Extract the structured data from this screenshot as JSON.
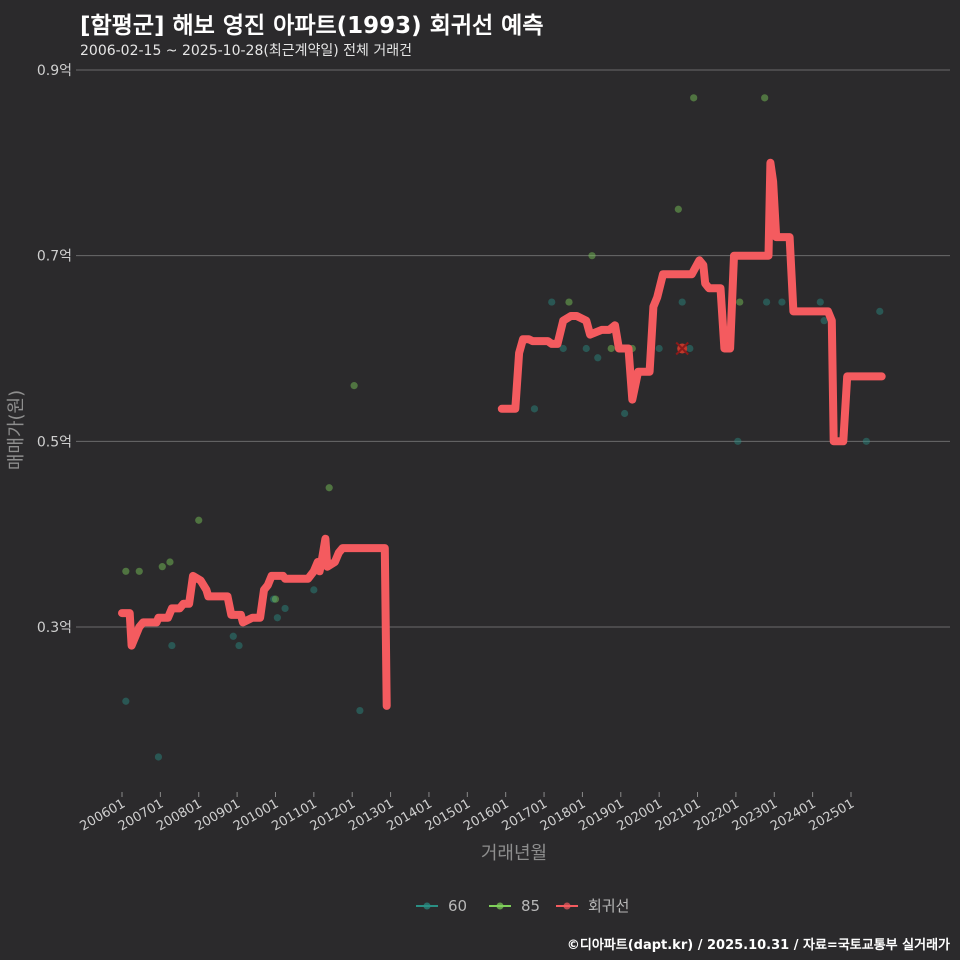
{
  "title": "[함평군] 해보 영진 아파트(1993) 회귀선 예측",
  "subtitle": "2006-02-15 ~ 2025-10-28(최근계약일) 전체 거래건",
  "credit": "©디아파트(dapt.kr) / 2025.10.31 / 자료=국토교통부 실거래가",
  "colors": {
    "background": "#2b2a2c",
    "grid": "#6b6b6b",
    "s60": "#2a8f84",
    "s85": "#7fcf5a",
    "regression": "#f45b5f"
  },
  "chart_data": {
    "type": "scatter",
    "title": "[함평군] 해보 영진 아파트(1993) 회귀선 예측",
    "xlabel": "거래년월",
    "ylabel": "매매가(원)",
    "x_range": [
      2005.9,
      2026.3
    ],
    "ylim": [
      0.13,
      0.93
    ],
    "y_ticks": [
      {
        "v": 0.3,
        "label": "0.3억"
      },
      {
        "v": 0.5,
        "label": "0.5억"
      },
      {
        "v": 0.7,
        "label": "0.7억"
      },
      {
        "v": 0.9,
        "label": "0.9억"
      }
    ],
    "x_ticks": [
      {
        "v": 2006,
        "label": "200601"
      },
      {
        "v": 2007,
        "label": "200701"
      },
      {
        "v": 2008,
        "label": "200801"
      },
      {
        "v": 2009,
        "label": "200901"
      },
      {
        "v": 2010,
        "label": "201001"
      },
      {
        "v": 2011,
        "label": "201101"
      },
      {
        "v": 2012,
        "label": "201201"
      },
      {
        "v": 2013,
        "label": "201301"
      },
      {
        "v": 2014,
        "label": "201401"
      },
      {
        "v": 2015,
        "label": "201501"
      },
      {
        "v": 2016,
        "label": "201601"
      },
      {
        "v": 2017,
        "label": "201701"
      },
      {
        "v": 2018,
        "label": "201801"
      },
      {
        "v": 2019,
        "label": "201901"
      },
      {
        "v": 2020,
        "label": "202001"
      },
      {
        "v": 2021,
        "label": "202101"
      },
      {
        "v": 2022,
        "label": "202201"
      },
      {
        "v": 2023,
        "label": "202301"
      },
      {
        "v": 2024,
        "label": "202401"
      },
      {
        "v": 2025,
        "label": "202501"
      }
    ],
    "legend": [
      {
        "name": "60",
        "color": "#2a8f84"
      },
      {
        "name": "85",
        "color": "#7fcf5a"
      },
      {
        "name": "회귀선",
        "color": "#f45b5f"
      }
    ],
    "series": [
      {
        "name": "60",
        "points": [
          [
            2006.1,
            0.22
          ],
          [
            2006.95,
            0.16
          ],
          [
            2007.3,
            0.28
          ],
          [
            2008.2,
            0.34
          ],
          [
            2008.9,
            0.29
          ],
          [
            2009.05,
            0.28
          ],
          [
            2009.95,
            0.33
          ],
          [
            2010.05,
            0.31
          ],
          [
            2010.25,
            0.32
          ],
          [
            2011.0,
            0.34
          ],
          [
            2012.2,
            0.21
          ],
          [
            2016.75,
            0.535
          ],
          [
            2017.2,
            0.65
          ],
          [
            2017.5,
            0.6
          ],
          [
            2018.1,
            0.6
          ],
          [
            2018.4,
            0.59
          ],
          [
            2019.1,
            0.53
          ],
          [
            2020.0,
            0.6
          ],
          [
            2020.6,
            0.65
          ],
          [
            2020.8,
            0.6
          ],
          [
            2022.05,
            0.5
          ],
          [
            2022.8,
            0.65
          ],
          [
            2023.2,
            0.65
          ],
          [
            2024.2,
            0.65
          ],
          [
            2024.3,
            0.63
          ],
          [
            2025.4,
            0.5
          ],
          [
            2025.75,
            0.64
          ]
        ]
      },
      {
        "name": "85",
        "points": [
          [
            2006.1,
            0.36
          ],
          [
            2006.45,
            0.36
          ],
          [
            2007.05,
            0.365
          ],
          [
            2007.25,
            0.37
          ],
          [
            2008.0,
            0.415
          ],
          [
            2010.0,
            0.33
          ],
          [
            2011.4,
            0.45
          ],
          [
            2012.05,
            0.56
          ],
          [
            2017.65,
            0.65
          ],
          [
            2018.25,
            0.7
          ],
          [
            2018.75,
            0.6
          ],
          [
            2019.3,
            0.6
          ],
          [
            2020.5,
            0.75
          ],
          [
            2020.9,
            0.87
          ],
          [
            2022.1,
            0.65
          ],
          [
            2022.75,
            0.87
          ]
        ]
      }
    ],
    "marker": {
      "x": 2020.6,
      "y": 0.6
    },
    "regression": [
      [
        [
          2006.0,
          0.315
        ],
        [
          2006.2,
          0.315
        ],
        [
          2006.25,
          0.28
        ],
        [
          2006.45,
          0.3
        ],
        [
          2006.55,
          0.305
        ],
        [
          2006.9,
          0.305
        ],
        [
          2006.95,
          0.31
        ],
        [
          2007.2,
          0.31
        ],
        [
          2007.3,
          0.32
        ],
        [
          2007.5,
          0.32
        ],
        [
          2007.6,
          0.325
        ],
        [
          2007.75,
          0.325
        ],
        [
          2007.85,
          0.355
        ],
        [
          2008.05,
          0.35
        ],
        [
          2008.2,
          0.34
        ],
        [
          2008.25,
          0.333
        ],
        [
          2008.75,
          0.333
        ],
        [
          2008.85,
          0.313
        ],
        [
          2009.1,
          0.313
        ],
        [
          2009.15,
          0.305
        ],
        [
          2009.4,
          0.31
        ],
        [
          2009.6,
          0.31
        ],
        [
          2009.7,
          0.34
        ],
        [
          2009.8,
          0.345
        ],
        [
          2009.9,
          0.355
        ],
        [
          2010.2,
          0.355
        ],
        [
          2010.25,
          0.352
        ],
        [
          2010.85,
          0.352
        ],
        [
          2011.0,
          0.36
        ],
        [
          2011.1,
          0.37
        ],
        [
          2011.15,
          0.36
        ],
        [
          2011.2,
          0.37
        ],
        [
          2011.3,
          0.395
        ],
        [
          2011.35,
          0.365
        ],
        [
          2011.55,
          0.37
        ],
        [
          2011.65,
          0.38
        ],
        [
          2011.75,
          0.385
        ],
        [
          2012.85,
          0.385
        ],
        [
          2012.9,
          0.215
        ]
      ],
      [
        [
          2015.9,
          0.535
        ],
        [
          2016.25,
          0.535
        ],
        [
          2016.35,
          0.595
        ],
        [
          2016.45,
          0.61
        ],
        [
          2016.6,
          0.61
        ],
        [
          2016.7,
          0.608
        ],
        [
          2017.1,
          0.608
        ],
        [
          2017.2,
          0.605
        ],
        [
          2017.35,
          0.605
        ],
        [
          2017.5,
          0.63
        ],
        [
          2017.7,
          0.635
        ],
        [
          2017.85,
          0.635
        ],
        [
          2018.1,
          0.63
        ],
        [
          2018.2,
          0.615
        ],
        [
          2018.5,
          0.62
        ],
        [
          2018.7,
          0.62
        ],
        [
          2018.85,
          0.625
        ],
        [
          2018.95,
          0.6
        ],
        [
          2019.2,
          0.6
        ],
        [
          2019.3,
          0.545
        ],
        [
          2019.45,
          0.575
        ],
        [
          2019.75,
          0.575
        ],
        [
          2019.85,
          0.645
        ],
        [
          2019.95,
          0.655
        ],
        [
          2020.1,
          0.68
        ],
        [
          2020.85,
          0.68
        ],
        [
          2021.05,
          0.695
        ],
        [
          2021.15,
          0.69
        ],
        [
          2021.2,
          0.67
        ],
        [
          2021.3,
          0.665
        ],
        [
          2021.6,
          0.665
        ],
        [
          2021.7,
          0.6
        ],
        [
          2021.85,
          0.6
        ],
        [
          2021.95,
          0.7
        ],
        [
          2022.85,
          0.7
        ],
        [
          2022.9,
          0.8
        ],
        [
          2022.97,
          0.78
        ],
        [
          2023.05,
          0.72
        ],
        [
          2023.4,
          0.72
        ],
        [
          2023.5,
          0.64
        ],
        [
          2024.4,
          0.64
        ],
        [
          2024.5,
          0.63
        ],
        [
          2024.55,
          0.5
        ],
        [
          2024.8,
          0.5
        ],
        [
          2024.9,
          0.57
        ],
        [
          2025.8,
          0.57
        ]
      ]
    ]
  }
}
